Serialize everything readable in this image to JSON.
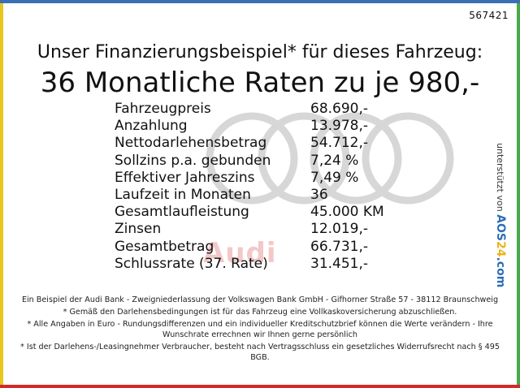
{
  "ref_id": "567421",
  "headline": "Unser Finanzierungsbeispiel* für dieses Fahrzeug:",
  "subheadline": "36 Monatliche Raten zu je 980,-",
  "details": [
    {
      "label": "Fahrzeugpreis",
      "value": "68.690,-"
    },
    {
      "label": "Anzahlung",
      "value": "13.978,-"
    },
    {
      "label": "Nettodarlehensbetrag",
      "value": "54.712,-"
    },
    {
      "label": "Sollzins p.a. gebunden",
      "value": "7,24 %"
    },
    {
      "label": "Effektiver Jahreszins",
      "value": "7,49 %"
    },
    {
      "label": "Laufzeit in Monaten",
      "value": "36"
    },
    {
      "label": "Gesamtlaufleistung",
      "value": "45.000 KM"
    },
    {
      "label": "Zinsen",
      "value": "12.019,-"
    },
    {
      "label": "Gesamtbetrag",
      "value": "66.731,-"
    },
    {
      "label": "Schlussrate (37. Rate)",
      "value": "31.451,-"
    }
  ],
  "watermark_brand": "Audi",
  "side_credit": {
    "prefix": "unterstützt von",
    "brand_a": "AOS",
    "brand_num": "24",
    "brand_b": ".com"
  },
  "footnotes": [
    "Ein Beispiel der Audi Bank - Zweigniederlassung der Volkswagen Bank GmbH - Gifhorner Straße 57 - 38112 Braunschweig",
    "* Gemäß den Darlehensbedingungen ist für das Fahrzeug eine Vollkaskoversicherung abzuschließen.",
    "* Alle Angaben in Euro - Rundungsdifferenzen und ein individueller Kreditschutzbrief können die Werte verändern - Ihre Wunschrate errechnen wir Ihnen gerne persönlich",
    "* Ist der Darlehens-/Leasingnehmer Verbraucher, besteht nach Vertragsschluss ein gesetzliches Widerrufsrecht nach § 495 BGB."
  ],
  "colors": {
    "top": "#3a6fb5",
    "left": "#e8c61c",
    "right": "#49a84a",
    "bottom": "#d22a2a"
  }
}
